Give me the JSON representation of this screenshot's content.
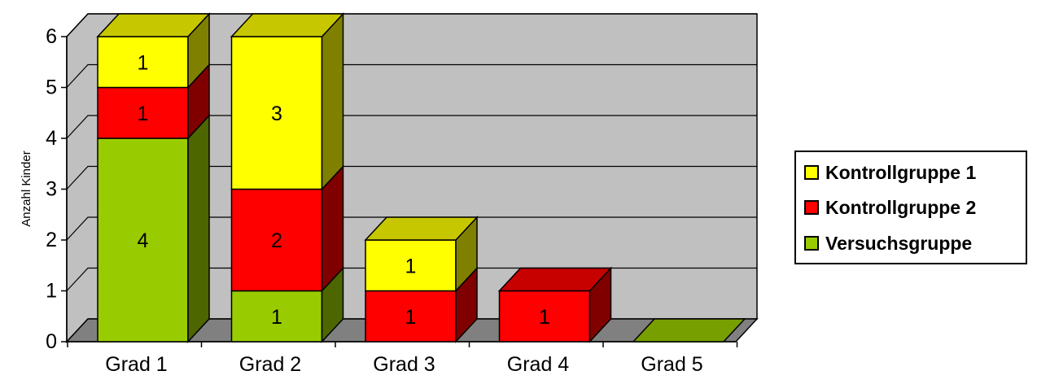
{
  "chart_data": {
    "type": "bar",
    "stacked": true,
    "three_d": true,
    "title": "",
    "xlabel": "",
    "ylabel": "Anzahl Kinder",
    "ylim": [
      0,
      6
    ],
    "yticks": [
      "0",
      "1",
      "2",
      "3",
      "4",
      "5",
      "6"
    ],
    "grid": true,
    "legend_position": "right",
    "categories": [
      "Grad 1",
      "Grad 2",
      "Grad 3",
      "Grad 4",
      "Grad 5"
    ],
    "series": [
      {
        "name": "Versuchsgruppe",
        "color": "#99cc00",
        "values": [
          4,
          1,
          0,
          0,
          0
        ]
      },
      {
        "name": "Kontrollgruppe 2",
        "color": "#ff0000",
        "values": [
          1,
          2,
          1,
          1,
          0
        ]
      },
      {
        "name": "Kontrollgruppe 1",
        "color": "#ffff00",
        "values": [
          1,
          3,
          1,
          0,
          0
        ]
      }
    ],
    "data_labels": true
  },
  "legend": {
    "items": [
      {
        "label": "Kontrollgruppe 1",
        "color": "#ffff00"
      },
      {
        "label": "Kontrollgruppe 2",
        "color": "#ff0000"
      },
      {
        "label": "Versuchsgruppe",
        "color": "#99cc00"
      }
    ]
  },
  "colors": {
    "wall": "#c0c0c0",
    "floor": "#808080",
    "gridline": "#000000"
  }
}
